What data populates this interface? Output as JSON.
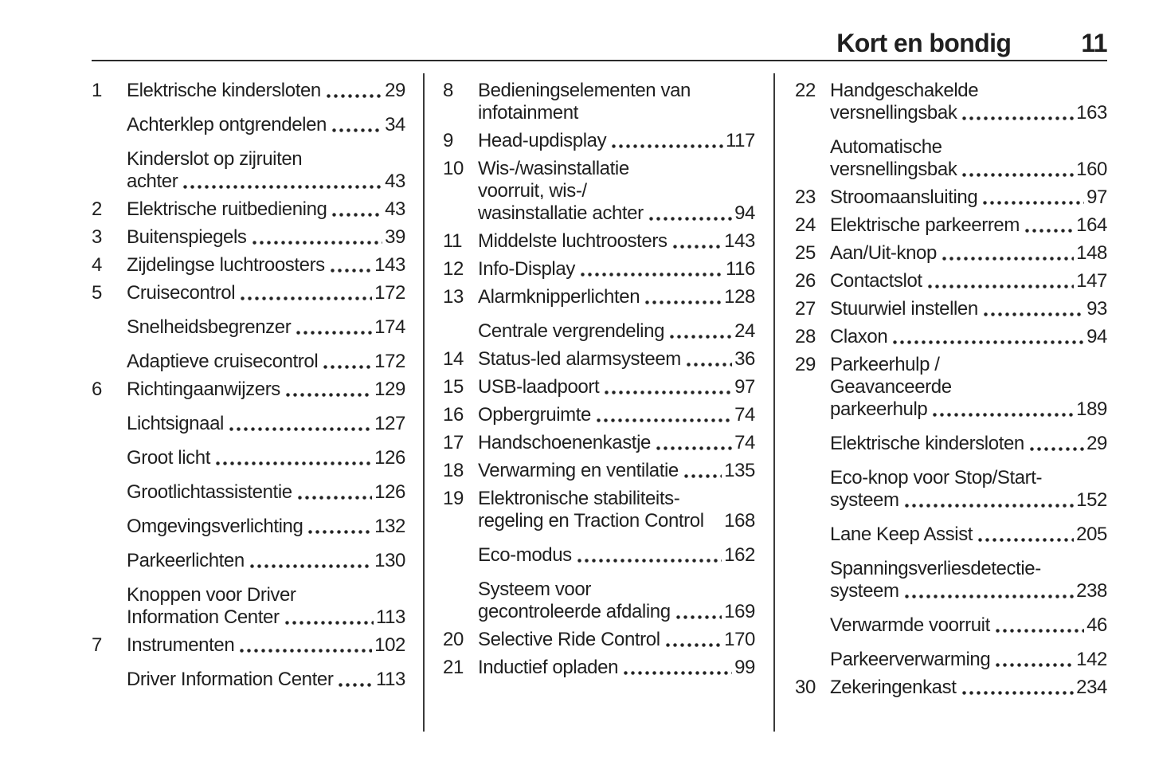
{
  "header": {
    "title": "Kort en bondig",
    "page_number": "11"
  },
  "colors": {
    "text": "#1f1f1f",
    "rule": "#2b2b2b"
  },
  "columns": [
    {
      "entries": [
        {
          "num": "1",
          "lines": [
            "Elektrische kindersloten"
          ],
          "page": "29"
        },
        {
          "num": "",
          "lines": [
            "Achterklep ontgrendelen"
          ],
          "page": "34"
        },
        {
          "num": "",
          "lines": [
            "Kinderslot op zijruiten",
            "achter"
          ],
          "page": "43"
        },
        {
          "num": "2",
          "lines": [
            "Elektrische ruitbediening"
          ],
          "page": "43"
        },
        {
          "num": "3",
          "lines": [
            "Buitenspiegels"
          ],
          "page": "39"
        },
        {
          "num": "4",
          "lines": [
            "Zijdelingse luchtroosters"
          ],
          "page": "143"
        },
        {
          "num": "5",
          "lines": [
            "Cruisecontrol"
          ],
          "page": "172"
        },
        {
          "num": "",
          "lines": [
            "Snelheidsbegrenzer"
          ],
          "page": "174"
        },
        {
          "num": "",
          "lines": [
            "Adaptieve cruisecontrol"
          ],
          "page": "172"
        },
        {
          "num": "6",
          "lines": [
            "Richtingaanwijzers"
          ],
          "page": "129"
        },
        {
          "num": "",
          "lines": [
            "Lichtsignaal"
          ],
          "page": "127"
        },
        {
          "num": "",
          "lines": [
            "Groot licht"
          ],
          "page": "126"
        },
        {
          "num": "",
          "lines": [
            "Grootlichtassistentie"
          ],
          "page": "126"
        },
        {
          "num": "",
          "lines": [
            "Omgevingsverlichting"
          ],
          "page": "132"
        },
        {
          "num": "",
          "lines": [
            "Parkeerlichten"
          ],
          "page": "130"
        },
        {
          "num": "",
          "lines": [
            "Knoppen voor Driver",
            "Information Center"
          ],
          "page": "113"
        },
        {
          "num": "7",
          "lines": [
            "Instrumenten"
          ],
          "page": "102"
        },
        {
          "num": "",
          "lines": [
            "Driver Information Center"
          ],
          "page": "113"
        }
      ]
    },
    {
      "entries": [
        {
          "num": "8",
          "lines": [
            "Bedieningselementen van",
            "infotainment"
          ]
        },
        {
          "num": "9",
          "lines": [
            "Head-updisplay"
          ],
          "page": "117"
        },
        {
          "num": "10",
          "lines": [
            "Wis-/wasinstallatie",
            "voorruit, wis-/",
            "wasinstallatie achter"
          ],
          "page": "94"
        },
        {
          "num": "11",
          "lines": [
            "Middelste luchtroosters"
          ],
          "page": "143"
        },
        {
          "num": "12",
          "lines": [
            "Info-Display"
          ],
          "page": "116"
        },
        {
          "num": "13",
          "lines": [
            "Alarmknipperlichten"
          ],
          "page": "128"
        },
        {
          "num": "",
          "lines": [
            "Centrale vergrendeling"
          ],
          "page": "24"
        },
        {
          "num": "14",
          "lines": [
            "Status-led alarmsysteem"
          ],
          "page": "36"
        },
        {
          "num": "15",
          "lines": [
            "USB-laadpoort"
          ],
          "page": "97"
        },
        {
          "num": "16",
          "lines": [
            "Opbergruimte"
          ],
          "page": "74"
        },
        {
          "num": "17",
          "lines": [
            "Handschoenenkastje"
          ],
          "page": "74"
        },
        {
          "num": "18",
          "lines": [
            "Verwarming en ventilatie"
          ],
          "page": "135"
        },
        {
          "num": "19",
          "lines": [
            "Elektronische stabiliteits-",
            "regeling en Traction Control"
          ],
          "page": "168",
          "no_leader": true
        },
        {
          "num": "",
          "lines": [
            "Eco-modus"
          ],
          "page": "162"
        },
        {
          "num": "",
          "lines": [
            "Systeem voor",
            "gecontroleerde afdaling"
          ],
          "page": "169"
        },
        {
          "num": "20",
          "lines": [
            "Selective Ride Control"
          ],
          "page": "170"
        },
        {
          "num": "21",
          "lines": [
            "Inductief opladen"
          ],
          "page": "99"
        }
      ]
    },
    {
      "entries": [
        {
          "num": "22",
          "lines": [
            "Handgeschakelde",
            "versnellingsbak"
          ],
          "page": "163"
        },
        {
          "num": "",
          "lines": [
            "Automatische",
            "versnellingsbak"
          ],
          "page": "160"
        },
        {
          "num": "23",
          "lines": [
            "Stroomaansluiting"
          ],
          "page": "97"
        },
        {
          "num": "24",
          "lines": [
            "Elektrische parkeerrem"
          ],
          "page": "164"
        },
        {
          "num": "25",
          "lines": [
            "Aan/Uit-knop"
          ],
          "page": "148"
        },
        {
          "num": "26",
          "lines": [
            "Contactslot"
          ],
          "page": "147"
        },
        {
          "num": "27",
          "lines": [
            "Stuurwiel instellen"
          ],
          "page": "93"
        },
        {
          "num": "28",
          "lines": [
            "Claxon"
          ],
          "page": "94"
        },
        {
          "num": "29",
          "lines": [
            "Parkeerhulp /",
            "Geavanceerde",
            "parkeerhulp"
          ],
          "page": "189"
        },
        {
          "num": "",
          "lines": [
            "Elektrische kindersloten"
          ],
          "page": "29"
        },
        {
          "num": "",
          "lines": [
            "Eco-knop voor Stop/Start-",
            "systeem"
          ],
          "page": "152"
        },
        {
          "num": "",
          "lines": [
            "Lane Keep Assist"
          ],
          "page": "205"
        },
        {
          "num": "",
          "lines": [
            "Spanningsverliesdetectie-",
            "systeem"
          ],
          "page": "238"
        },
        {
          "num": "",
          "lines": [
            "Verwarmde voorruit"
          ],
          "page": "46"
        },
        {
          "num": "",
          "lines": [
            "Parkeerverwarming"
          ],
          "page": "142"
        },
        {
          "num": "30",
          "lines": [
            "Zekeringenkast"
          ],
          "page": "234"
        }
      ]
    }
  ]
}
